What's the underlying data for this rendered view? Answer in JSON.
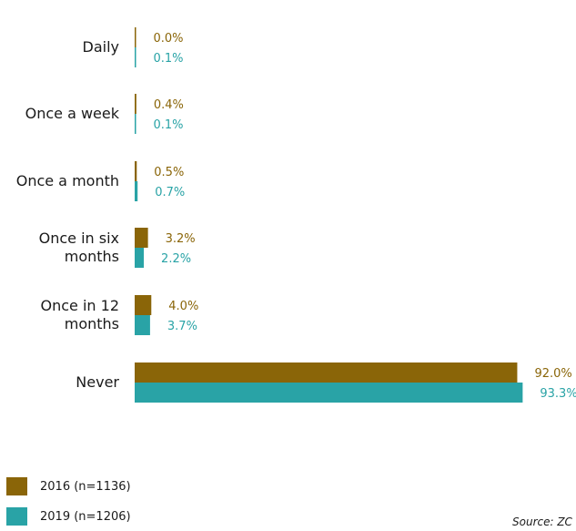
{
  "chart_data": {
    "type": "bar",
    "orientation": "horizontal",
    "categories": [
      [
        "Daily"
      ],
      [
        "Once a week"
      ],
      [
        "Once a month"
      ],
      [
        "Once in six",
        "months"
      ],
      [
        "Once in 12",
        "months"
      ],
      [
        "Never"
      ]
    ],
    "series": [
      {
        "name": "2016 (n=1136)",
        "color": "#8a6508",
        "values": [
          0.0,
          0.4,
          0.5,
          3.2,
          4.0,
          92.0
        ]
      },
      {
        "name": "2019 (n=1206)",
        "color": "#29a3a6",
        "values": [
          0.1,
          0.1,
          0.7,
          2.2,
          3.7,
          93.3
        ]
      }
    ],
    "value_suffix": "%",
    "value_labels": [
      [
        "0.0%",
        "0.4%",
        "0.5%",
        "3.2%",
        "4.0%",
        "92.0%"
      ],
      [
        "0.1%",
        "0.1%",
        "0.7%",
        "2.2%",
        "3.7%",
        "93.3%"
      ]
    ],
    "xlim": [
      0,
      100
    ],
    "legend_position": "bottom-left",
    "grid": false
  },
  "legend": [
    {
      "label": "2016 (n=1136)",
      "color": "#8a6508"
    },
    {
      "label": "2019 (n=1206)",
      "color": "#29a3a6"
    }
  ],
  "source_note": "Source: ZC"
}
